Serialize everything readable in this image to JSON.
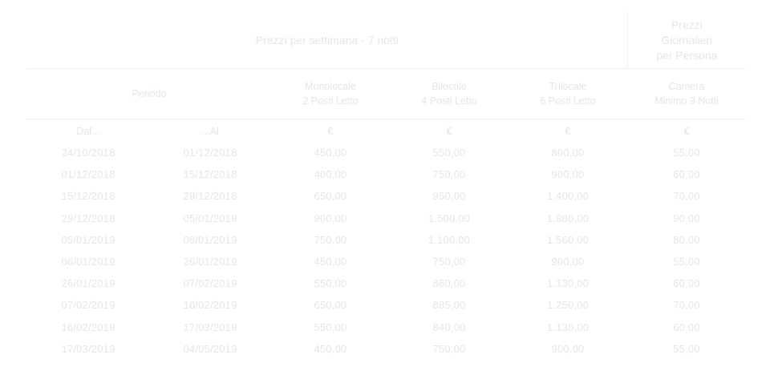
{
  "header": {
    "week_title": "Prezzi per settimana - 7 notti",
    "daily_title_line1": "Prezzi",
    "daily_title_line2": "Giornalieri",
    "daily_title_line3": "per Persona",
    "periodo": "Periodo",
    "mono_line1": "Monolocale",
    "mono_line2": "2 Posti Letto",
    "bilo_line1": "Bilocale",
    "bilo_line2": "4 Posti Letto",
    "trilo_line1": "Trilocale",
    "trilo_line2": "6 Posti Letto",
    "camera_line1": "Camera",
    "camera_line2": "Minimo 3 Notti",
    "dal": "Dal...",
    "al": "...Al",
    "currency": "€"
  },
  "rows": [
    [
      "24/10/2018",
      "01/12/2018",
      "450,00",
      "550,00",
      "800,00",
      "55,00"
    ],
    [
      "01/12/2018",
      "15/12/2018",
      "400,00",
      "750,00",
      "900,00",
      "60,00"
    ],
    [
      "15/12/2018",
      "29/12/2018",
      "650,00",
      "950,00",
      "1.400,00",
      "70,00"
    ],
    [
      "29/12/2018",
      "05/01/2019",
      "900,00",
      "1.500,00",
      "1.980,00",
      "90,00"
    ],
    [
      "05/01/2019",
      "06/01/2019",
      "750,00",
      "1.100,00",
      "1.560,00",
      "80,00"
    ],
    [
      "06/01/2019",
      "26/01/2019",
      "450,00",
      "750,00",
      "900,00",
      "55,00"
    ],
    [
      "26/01/2019",
      "07/02/2019",
      "550,00",
      "860,00",
      "1.130,00",
      "60,00"
    ],
    [
      "07/02/2019",
      "16/02/2019",
      "650,00",
      "885,00",
      "1.250,00",
      "70,00"
    ],
    [
      "16/02/2019",
      "17/03/2019",
      "550,00",
      "840,00",
      "1.130,00",
      "60,00"
    ],
    [
      "17/03/2019",
      "04/05/2019",
      "450,00",
      "750,00",
      "900,00",
      "55,00"
    ]
  ]
}
